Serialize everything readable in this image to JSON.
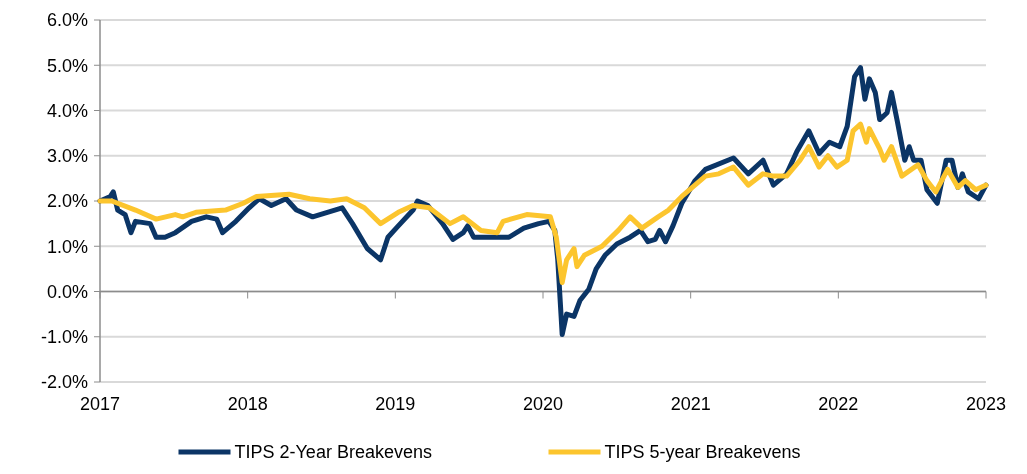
{
  "chart_data": {
    "type": "line",
    "xlim": [
      2017,
      2023
    ],
    "xticks": [
      2017,
      2018,
      2019,
      2020,
      2021,
      2022,
      2023
    ],
    "ylim": [
      -2,
      6
    ],
    "yticks": [
      {
        "value": -2,
        "label": "-2.0%"
      },
      {
        "value": -1,
        "label": "-1.0%"
      },
      {
        "value": 0,
        "label": "0.0%"
      },
      {
        "value": 1,
        "label": "1.0%"
      },
      {
        "value": 2,
        "label": "2.0%"
      },
      {
        "value": 3,
        "label": "3.0%"
      },
      {
        "value": 4,
        "label": "4.0%"
      },
      {
        "value": 5,
        "label": "5.0%"
      },
      {
        "value": 6,
        "label": "6.0%"
      }
    ],
    "grid": "y",
    "legend": "bottom",
    "marker": "none",
    "line_style": "solid",
    "series": [
      {
        "name": "TIPS 2-Year Breakevens",
        "color": "#0b3566",
        "x": [
          2017.0,
          2017.07,
          2017.09,
          2017.12,
          2017.17,
          2017.21,
          2017.24,
          2017.34,
          2017.38,
          2017.44,
          2017.51,
          2017.62,
          2017.72,
          2017.79,
          2017.83,
          2017.92,
          2018.01,
          2018.08,
          2018.16,
          2018.26,
          2018.33,
          2018.44,
          2018.54,
          2018.64,
          2018.71,
          2018.81,
          2018.9,
          2018.95,
          2019.02,
          2019.12,
          2019.15,
          2019.22,
          2019.32,
          2019.39,
          2019.46,
          2019.49,
          2019.53,
          2019.67,
          2019.77,
          2019.87,
          2019.97,
          2020.04,
          2020.08,
          2020.1,
          2020.13,
          2020.16,
          2020.21,
          2020.25,
          2020.31,
          2020.36,
          2020.42,
          2020.5,
          2020.59,
          2020.66,
          2020.71,
          2020.76,
          2020.79,
          2020.83,
          2020.88,
          2020.94,
          2021.03,
          2021.1,
          2021.29,
          2021.39,
          2021.49,
          2021.56,
          2021.65,
          2021.72,
          2021.8,
          2021.87,
          2021.94,
          2022.01,
          2022.06,
          2022.11,
          2022.15,
          2022.18,
          2022.21,
          2022.25,
          2022.28,
          2022.33,
          2022.36,
          2022.4,
          2022.45,
          2022.48,
          2022.51,
          2022.56,
          2022.6,
          2022.67,
          2022.73,
          2022.77,
          2022.81,
          2022.84,
          2022.88,
          2022.95,
          2023.0
        ],
        "values": [
          2.0,
          2.1,
          2.2,
          1.8,
          1.7,
          1.3,
          1.55,
          1.5,
          1.2,
          1.2,
          1.3,
          1.55,
          1.65,
          1.6,
          1.3,
          1.55,
          1.85,
          2.05,
          1.9,
          2.05,
          1.8,
          1.65,
          1.75,
          1.85,
          1.5,
          0.95,
          0.7,
          1.2,
          1.45,
          1.8,
          2.0,
          1.9,
          1.5,
          1.15,
          1.3,
          1.45,
          1.2,
          1.2,
          1.2,
          1.4,
          1.5,
          1.55,
          1.35,
          0.7,
          -0.95,
          -0.5,
          -0.55,
          -0.2,
          0.05,
          0.5,
          0.8,
          1.05,
          1.2,
          1.35,
          1.1,
          1.15,
          1.35,
          1.1,
          1.45,
          1.95,
          2.45,
          2.7,
          2.95,
          2.6,
          2.9,
          2.35,
          2.6,
          3.1,
          3.55,
          3.05,
          3.3,
          3.2,
          3.65,
          4.75,
          4.95,
          4.25,
          4.7,
          4.4,
          3.8,
          3.95,
          4.4,
          3.75,
          2.9,
          3.2,
          2.9,
          2.9,
          2.25,
          1.95,
          2.9,
          2.9,
          2.3,
          2.6,
          2.2,
          2.05,
          2.35
        ]
      },
      {
        "name": "TIPS 5-year Breakevens",
        "color": "#fcc52e",
        "x": [
          2017.0,
          2017.08,
          2017.24,
          2017.38,
          2017.51,
          2017.56,
          2017.65,
          2017.85,
          2017.97,
          2018.06,
          2018.28,
          2018.42,
          2018.56,
          2018.67,
          2018.79,
          2018.9,
          2019.02,
          2019.12,
          2019.23,
          2019.37,
          2019.46,
          2019.58,
          2019.69,
          2019.73,
          2019.89,
          2020.05,
          2020.09,
          2020.13,
          2020.16,
          2020.21,
          2020.23,
          2020.28,
          2020.4,
          2020.51,
          2020.59,
          2020.67,
          2020.78,
          2020.85,
          2020.94,
          2021.1,
          2021.19,
          2021.29,
          2021.39,
          2021.49,
          2021.56,
          2021.65,
          2021.74,
          2021.8,
          2021.87,
          2021.93,
          2021.99,
          2022.06,
          2022.1,
          2022.15,
          2022.19,
          2022.21,
          2022.28,
          2022.31,
          2022.36,
          2022.43,
          2022.54,
          2022.6,
          2022.66,
          2022.74,
          2022.81,
          2022.86,
          2022.93,
          2023.0
        ],
        "values": [
          2.0,
          2.0,
          1.8,
          1.6,
          1.7,
          1.65,
          1.75,
          1.8,
          1.95,
          2.1,
          2.15,
          2.05,
          2.0,
          2.05,
          1.85,
          1.5,
          1.75,
          1.9,
          1.85,
          1.5,
          1.65,
          1.35,
          1.3,
          1.55,
          1.7,
          1.65,
          1.2,
          0.2,
          0.7,
          0.95,
          0.55,
          0.8,
          1.0,
          1.35,
          1.65,
          1.4,
          1.65,
          1.8,
          2.1,
          2.55,
          2.6,
          2.75,
          2.35,
          2.6,
          2.55,
          2.55,
          2.9,
          3.2,
          2.75,
          3.0,
          2.75,
          2.9,
          3.55,
          3.7,
          3.3,
          3.6,
          3.15,
          2.9,
          3.2,
          2.55,
          2.8,
          2.45,
          2.2,
          2.7,
          2.3,
          2.45,
          2.25,
          2.35
        ]
      }
    ]
  }
}
